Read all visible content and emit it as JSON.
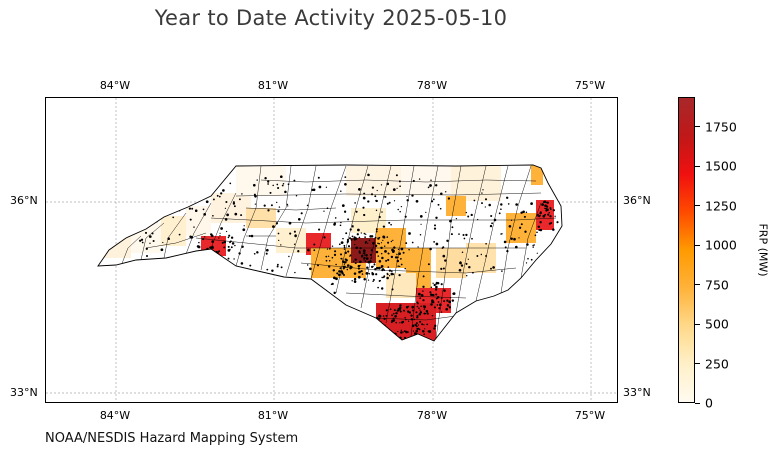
{
  "title": "Year to Date Activity 2025-05-10",
  "credit": "NOAA/NESDIS Hazard Mapping System",
  "map": {
    "region": "North Carolina counties",
    "longitude_ticks": [
      "84°W",
      "81°W",
      "78°W",
      "75°W"
    ],
    "latitude_ticks": [
      "36°N",
      "33°N"
    ],
    "gridlines": true
  },
  "colorbar": {
    "label": "FRP (MW)",
    "ticks": [
      "0",
      "250",
      "500",
      "750",
      "1000",
      "1250",
      "1500",
      "1750"
    ],
    "colors": [
      "#fffbf0",
      "#fff0c8",
      "#ffd98a",
      "#ffb23a",
      "#ff9a00",
      "#ff4a00",
      "#f01010",
      "#c01818",
      "#a8282a"
    ],
    "min": 0,
    "max": 1940
  },
  "colors": {
    "outline": "#000000",
    "grid": "#999999",
    "hotspot": "#000000"
  }
}
